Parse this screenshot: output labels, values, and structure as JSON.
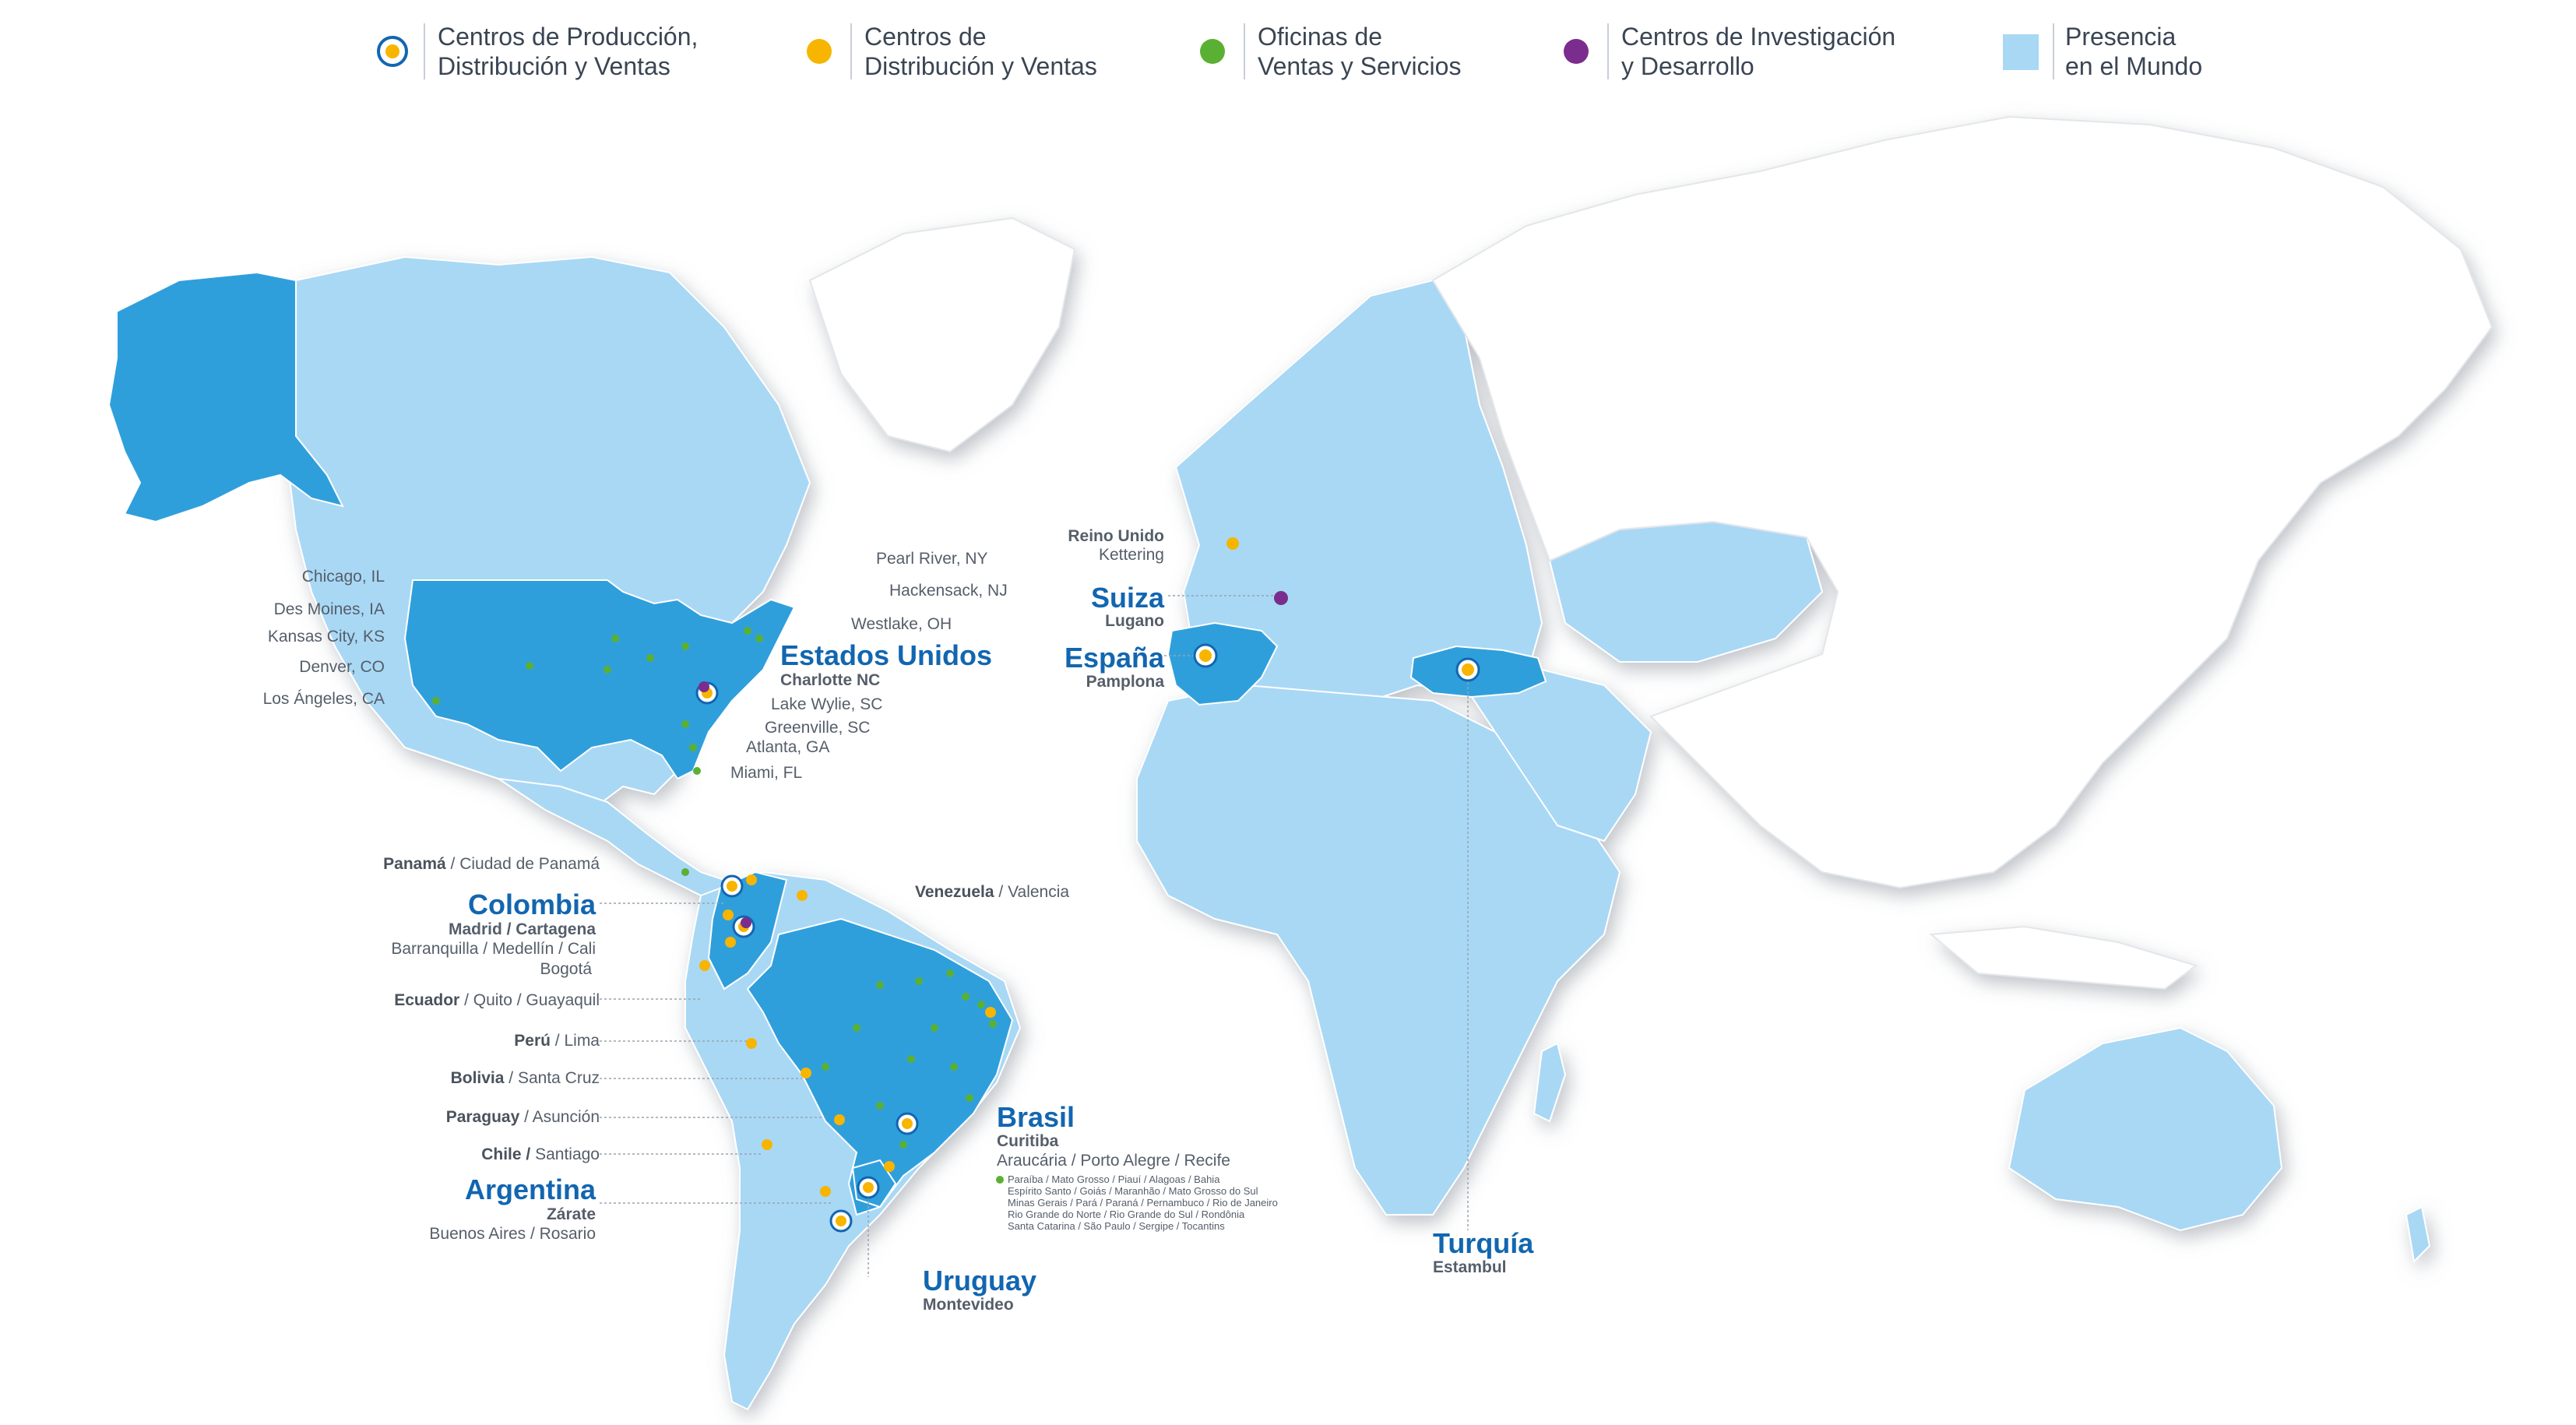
{
  "legend": [
    {
      "label_line1": "Centros de Producción,",
      "label_line2": "Distribución y Ventas",
      "marker": "ring-dot-icon",
      "color": "#f7b500",
      "ring_color": "#1266b0"
    },
    {
      "label_line1": "Centros de",
      "label_line2": "Distribución y Ventas",
      "marker": "yellow-dot-icon",
      "color": "#f7b500"
    },
    {
      "label_line1": "Oficinas de",
      "label_line2": "Ventas y Servicios",
      "marker": "green-dot-icon",
      "color": "#5ab033"
    },
    {
      "label_line1": "Centros de Investigación",
      "label_line2": "y Desarrollo",
      "marker": "purple-dot-icon",
      "color": "#7b2d8e"
    },
    {
      "label_line1": "Presencia",
      "label_line2": "en el Mundo",
      "marker": "light-blue-square-icon",
      "color": "#a9d8f5"
    }
  ],
  "colors": {
    "presence": "#a9d8f5",
    "highlight": "#2f9fdc",
    "land_other": "#ffffff",
    "shadow": "#b7bcc3",
    "accent_text": "#1266b0"
  },
  "usa": {
    "title": "Estados Unidos",
    "main_city": "Charlotte NC",
    "cities_left": [
      "Chicago, IL",
      "Des Moines, IA",
      "Kansas City, KS",
      "Denver, CO",
      "Los Ángeles, CA"
    ],
    "cities_right": [
      "Pearl River, NY",
      "Hackensack, NJ",
      "Westlake, OH",
      "Lake Wylie, SC",
      "Greenville, SC",
      "Atlanta, GA",
      "Miami, FL"
    ]
  },
  "europe": {
    "uk_name": "Reino Unido",
    "uk_city": "Kettering",
    "suiza": "Suiza",
    "suiza_city": "Lugano",
    "espana": "España",
    "espana_city": "Pamplona"
  },
  "turquia": {
    "name": "Turquía",
    "city": "Estambul"
  },
  "latam": {
    "panama_name": "Panamá",
    "panama_city": " / Ciudad de Panamá",
    "venezuela_name": "Venezuela",
    "venezuela_city": " / Valencia",
    "colombia": "Colombia",
    "colombia_main": "Madrid / Cartagena",
    "colombia_cities_1": "Barranquilla / Medellín / Cali",
    "colombia_cities_2": "Bogotá",
    "ecuador_name": "Ecuador",
    "ecuador_city": " / Quito / Guayaquil",
    "peru_name": "Perú",
    "peru_city": " / Lima",
    "bolivia_name": "Bolivia",
    "bolivia_city": " / Santa Cruz",
    "paraguay_name": "Paraguay",
    "paraguay_city": " / Asunción",
    "chile_name": "Chile /",
    "chile_city": "  Santiago",
    "argentina": "Argentina",
    "argentina_main": "Zárate",
    "argentina_cities": "Buenos Aires / Rosario",
    "uruguay": "Uruguay",
    "uruguay_city": "Montevideo",
    "brasil": "Brasil",
    "brasil_main": "Curitiba",
    "brasil_cities": "Araucária / Porto Alegre / Recife",
    "brasil_states": [
      "Paraíba / Mato Grosso / Piauí / Alagoas / Bahia",
      "Espírito Santo / Goiás / Maranhão / Mato Grosso do Sul",
      "Minas Gerais / Pará / Paraná / Pernambuco / Rio de Janeiro",
      "Rio Grande do Norte / Rio Grande do Sul / Rondônia",
      "Santa Catarina / São Paulo / Sergipe / Tocantins"
    ]
  }
}
